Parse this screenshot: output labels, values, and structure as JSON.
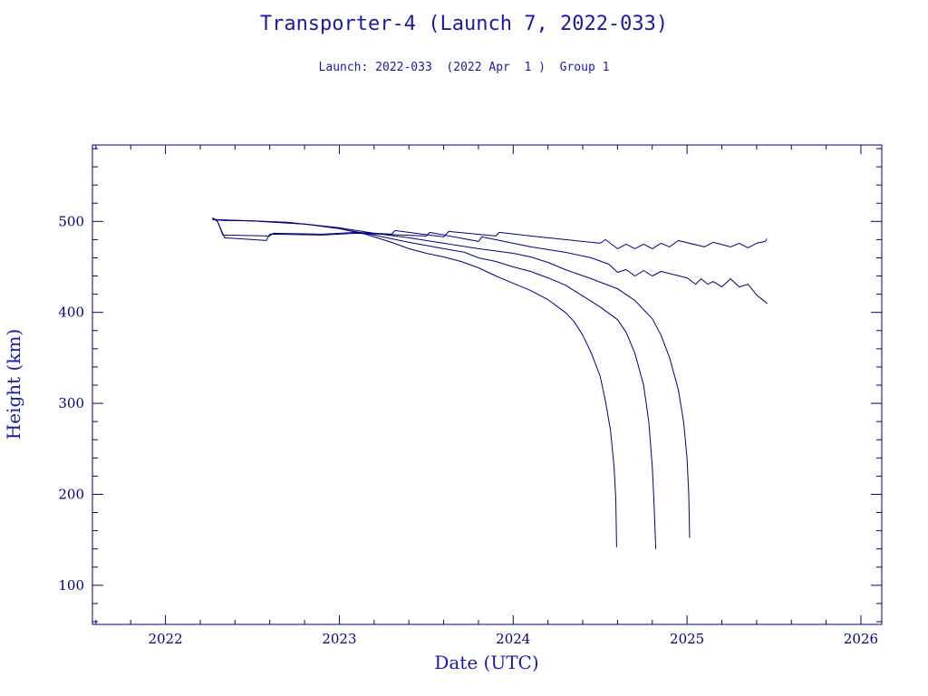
{
  "chart_data": {
    "type": "line",
    "title": "Transporter-4 (Launch 7, 2022-033)",
    "subtitle": "Launch: 2022-033  (2022 Apr  1 )  Group 1",
    "xlabel": "Date (UTC)",
    "ylabel": "Height (km)",
    "xlim": [
      2021.58,
      2026.12
    ],
    "ylim": [
      57,
      584
    ],
    "x_ticks": [
      2022,
      2023,
      2024,
      2025,
      2026
    ],
    "x_tick_labels": [
      "2022",
      "2023",
      "2024",
      "2025",
      "2026"
    ],
    "y_ticks": [
      100,
      200,
      300,
      400,
      500
    ],
    "y_tick_labels": [
      "100",
      "200",
      "300",
      "400",
      "500"
    ],
    "grid": false,
    "line_color": "#000080",
    "series": [
      {
        "values": [
          [
            2022.27,
            502
          ],
          [
            2022.33,
            501
          ],
          [
            2022.5,
            500.5
          ],
          [
            2022.7,
            499
          ],
          [
            2022.85,
            496
          ],
          [
            2023.0,
            492
          ],
          [
            2023.15,
            486
          ],
          [
            2023.3,
            477
          ],
          [
            2023.4,
            470
          ],
          [
            2023.5,
            465
          ],
          [
            2023.6,
            461
          ],
          [
            2023.7,
            456
          ],
          [
            2023.8,
            449
          ],
          [
            2023.9,
            440
          ],
          [
            2024.0,
            432
          ],
          [
            2024.1,
            424
          ],
          [
            2024.2,
            414
          ],
          [
            2024.3,
            400
          ],
          [
            2024.35,
            390
          ],
          [
            2024.4,
            375
          ],
          [
            2024.45,
            355
          ],
          [
            2024.5,
            330
          ],
          [
            2024.53,
            303
          ],
          [
            2024.56,
            270
          ],
          [
            2024.58,
            230
          ],
          [
            2024.59,
            195
          ],
          [
            2024.595,
            142
          ]
        ]
      },
      {
        "values": [
          [
            2022.27,
            502
          ],
          [
            2022.5,
            500.5
          ],
          [
            2022.8,
            497
          ],
          [
            2023.0,
            492
          ],
          [
            2023.2,
            485
          ],
          [
            2023.4,
            477
          ],
          [
            2023.6,
            470
          ],
          [
            2023.72,
            466
          ],
          [
            2023.8,
            460
          ],
          [
            2023.9,
            456
          ],
          [
            2024.0,
            450
          ],
          [
            2024.1,
            445
          ],
          [
            2024.2,
            438
          ],
          [
            2024.3,
            430
          ],
          [
            2024.4,
            418
          ],
          [
            2024.5,
            406
          ],
          [
            2024.6,
            392
          ],
          [
            2024.65,
            378
          ],
          [
            2024.7,
            355
          ],
          [
            2024.75,
            320
          ],
          [
            2024.78,
            280
          ],
          [
            2024.8,
            230
          ],
          [
            2024.81,
            190
          ],
          [
            2024.82,
            140
          ]
        ]
      },
      {
        "values": [
          [
            2022.27,
            502
          ],
          [
            2022.5,
            500.5
          ],
          [
            2022.8,
            497
          ],
          [
            2023.0,
            493
          ],
          [
            2023.2,
            487
          ],
          [
            2023.4,
            482
          ],
          [
            2023.6,
            476
          ],
          [
            2023.8,
            470
          ],
          [
            2024.0,
            465
          ],
          [
            2024.1,
            461
          ],
          [
            2024.2,
            455
          ],
          [
            2024.3,
            447
          ],
          [
            2024.45,
            437
          ],
          [
            2024.6,
            426
          ],
          [
            2024.7,
            413
          ],
          [
            2024.8,
            393
          ],
          [
            2024.85,
            375
          ],
          [
            2024.9,
            350
          ],
          [
            2024.95,
            315
          ],
          [
            2024.98,
            280
          ],
          [
            2025.0,
            240
          ],
          [
            2025.01,
            200
          ],
          [
            2025.015,
            152
          ]
        ]
      },
      {
        "values": [
          [
            2022.27,
            504
          ],
          [
            2022.3,
            500
          ],
          [
            2022.33,
            485
          ],
          [
            2022.6,
            484
          ],
          [
            2022.62,
            487
          ],
          [
            2022.9,
            486
          ],
          [
            2023.1,
            488
          ],
          [
            2023.3,
            486
          ],
          [
            2023.32,
            490
          ],
          [
            2023.6,
            483
          ],
          [
            2023.63,
            489
          ],
          [
            2023.9,
            484
          ],
          [
            2023.92,
            488
          ],
          [
            2024.1,
            484
          ],
          [
            2024.3,
            480
          ],
          [
            2024.5,
            476
          ],
          [
            2024.53,
            480
          ],
          [
            2024.6,
            470
          ],
          [
            2024.65,
            475
          ],
          [
            2024.7,
            470
          ],
          [
            2024.75,
            475
          ],
          [
            2024.8,
            470
          ],
          [
            2024.85,
            476
          ],
          [
            2024.9,
            472
          ],
          [
            2024.95,
            479
          ],
          [
            2025.1,
            472
          ],
          [
            2025.15,
            477
          ],
          [
            2025.25,
            472
          ],
          [
            2025.3,
            476
          ],
          [
            2025.35,
            471
          ],
          [
            2025.4,
            476
          ],
          [
            2025.45,
            478
          ],
          [
            2025.46,
            481
          ]
        ]
      },
      {
        "values": [
          [
            2022.27,
            504
          ],
          [
            2022.3,
            500
          ],
          [
            2022.34,
            482
          ],
          [
            2022.58,
            479
          ],
          [
            2022.6,
            486
          ],
          [
            2022.9,
            485
          ],
          [
            2023.1,
            487
          ],
          [
            2023.5,
            484
          ],
          [
            2023.52,
            488
          ],
          [
            2023.8,
            478
          ],
          [
            2023.82,
            483
          ],
          [
            2024.0,
            476
          ],
          [
            2024.1,
            472
          ],
          [
            2024.3,
            466
          ],
          [
            2024.45,
            460
          ],
          [
            2024.55,
            453
          ],
          [
            2024.6,
            444
          ],
          [
            2024.65,
            447
          ],
          [
            2024.7,
            440
          ],
          [
            2024.75,
            446
          ],
          [
            2024.8,
            440
          ],
          [
            2024.85,
            445
          ],
          [
            2025.0,
            438
          ],
          [
            2025.05,
            431
          ],
          [
            2025.08,
            437
          ],
          [
            2025.12,
            431
          ],
          [
            2025.15,
            434
          ],
          [
            2025.2,
            428
          ],
          [
            2025.25,
            437
          ],
          [
            2025.3,
            428
          ],
          [
            2025.35,
            431
          ],
          [
            2025.4,
            419
          ],
          [
            2025.46,
            410
          ]
        ]
      }
    ]
  }
}
